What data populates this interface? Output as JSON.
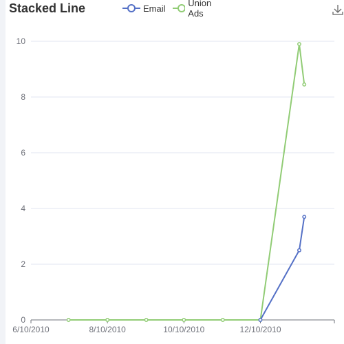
{
  "chart_data": {
    "type": "line",
    "title": "Stacked Line",
    "x_tick_labels": [
      "6/10/2010",
      "8/10/2010",
      "10/10/2010",
      "12/10/2010"
    ],
    "x_ticks": [
      "2010-06-10",
      "2010-08-10",
      "2010-10-10",
      "2010-12-10"
    ],
    "xlim": [
      "2010-06-10",
      "2011-02-07"
    ],
    "ylim": [
      0,
      10
    ],
    "y_ticks": [
      0,
      2,
      4,
      6,
      8,
      10
    ],
    "grid": true,
    "legend_position": "top-center",
    "series": [
      {
        "name": "Email",
        "color": "#5470c6",
        "points": [
          {
            "x": "2010-12-10",
            "y": 0
          },
          {
            "x": "2011-01-10",
            "y": 2.5
          },
          {
            "x": "2011-01-14",
            "y": 3.7
          }
        ]
      },
      {
        "name": "Union Ads",
        "color": "#91cc75",
        "points": [
          {
            "x": "2010-07-10",
            "y": 0
          },
          {
            "x": "2010-08-10",
            "y": 0
          },
          {
            "x": "2010-09-10",
            "y": 0
          },
          {
            "x": "2010-10-10",
            "y": 0
          },
          {
            "x": "2010-11-10",
            "y": 0
          },
          {
            "x": "2010-12-10",
            "y": 0
          },
          {
            "x": "2011-01-10",
            "y": 9.9
          },
          {
            "x": "2011-01-14",
            "y": 8.45
          }
        ]
      }
    ]
  },
  "icons": {
    "download": "download-icon"
  }
}
